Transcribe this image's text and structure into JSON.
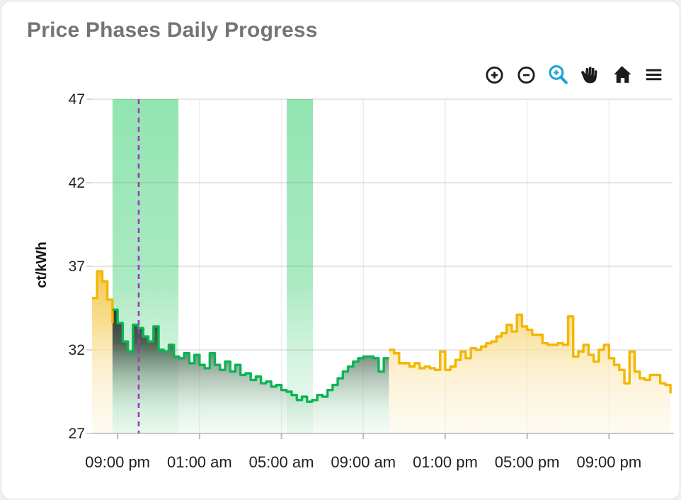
{
  "header": {
    "title": "Price Phases Daily Progress"
  },
  "toolbar": {
    "icon_color": "#1b1b1b",
    "active_color": "#1aa3d8",
    "buttons": [
      {
        "id": "zoom-in",
        "active": false
      },
      {
        "id": "zoom-out",
        "active": false
      },
      {
        "id": "box-zoom",
        "active": true
      },
      {
        "id": "pan",
        "active": false
      },
      {
        "id": "home",
        "active": false
      },
      {
        "id": "menu",
        "active": false
      }
    ]
  },
  "chart_data": {
    "type": "step-area",
    "title": "Price Phases Daily Progress",
    "xlabel": "",
    "ylabel": "ct/kWh",
    "ylim": [
      27,
      47
    ],
    "yticks": [
      27,
      32,
      37,
      42,
      47
    ],
    "xtick_labels": [
      "09:00 pm",
      "01:00 am",
      "05:00 am",
      "09:00 am",
      "01:00 pm",
      "05:00 pm",
      "09:00 pm"
    ],
    "xtick_hours": [
      0,
      4,
      8,
      12,
      16,
      20,
      24
    ],
    "xlim_hours": [
      -1.25,
      27.1
    ],
    "interval_hours": 0.25,
    "grid": true,
    "legend_position": "none",
    "axis_text_color": "#1f1f1f",
    "grid_color": "#e7e7e7",
    "axis_line_color": "#c9c9c9",
    "now_marker": {
      "hour": 1.03,
      "color": "#a832c8",
      "style": "dashed"
    },
    "highlight_bands": {
      "color": "#8ce4ad",
      "ranges": [
        {
          "from": -0.25,
          "to": 2.97
        },
        {
          "from": 8.26,
          "to": 9.54
        }
      ]
    },
    "series": [
      {
        "name": "price-phase-before",
        "color": "#f3b700",
        "fill": "yellow",
        "start_hour": -1.25,
        "values": [
          35.1,
          36.7,
          36.1,
          35.0
        ],
        "end_value": 33.6
      },
      {
        "name": "price-phase-active",
        "color": "#0ab553",
        "fill": "green",
        "start_hour": -0.25,
        "values": [
          34.4,
          33.6,
          32.5,
          31.9,
          33.5,
          33.3,
          32.8,
          32.5,
          33.4,
          32.0,
          31.9,
          32.3,
          31.6,
          31.5,
          31.8,
          31.2,
          31.7,
          31.1,
          30.9,
          31.8,
          31.1,
          30.8,
          31.3,
          30.7,
          31.1,
          30.5,
          30.6,
          30.2,
          30.4,
          30.0,
          30.1,
          29.8,
          29.9,
          29.6,
          29.5,
          29.3,
          29.0,
          29.2,
          28.9,
          29.0,
          29.3,
          29.2,
          29.6,
          29.9,
          30.3,
          30.7,
          31.0,
          31.3,
          31.5,
          31.6,
          31.6,
          31.5,
          30.7,
          31.5
        ]
      },
      {
        "name": "price-phase-after",
        "color": "#f3b700",
        "fill": "yellow",
        "start_hour": 13.25,
        "values": [
          32.0,
          31.8,
          31.2,
          31.2,
          31.0,
          31.2,
          30.9,
          31.0,
          30.9,
          30.8,
          31.9,
          30.8,
          31.0,
          31.4,
          31.9,
          31.5,
          32.1,
          32.0,
          32.2,
          32.4,
          32.5,
          32.8,
          33.0,
          33.5,
          33.1,
          34.1,
          33.4,
          33.2,
          32.9,
          32.9,
          32.4,
          32.3,
          32.3,
          32.4,
          32.3,
          34.0,
          31.6,
          31.9,
          32.3,
          31.7,
          31.3,
          32.0,
          32.3,
          31.5,
          31.1,
          30.8,
          30.0,
          31.9,
          30.7,
          30.3,
          30.2,
          30.5,
          30.5,
          30.0,
          29.9
        ],
        "end_value": 29.4
      }
    ]
  }
}
